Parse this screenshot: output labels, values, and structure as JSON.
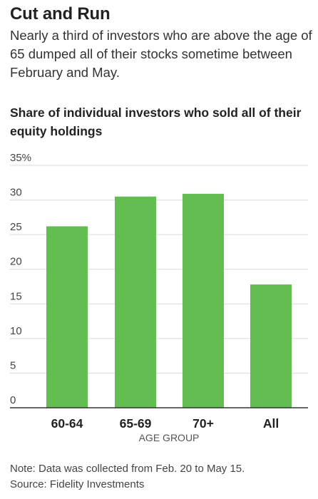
{
  "header": {
    "title": "Cut and Run",
    "subtitle": "Nearly a third of investors who are above the age of 65 dumped all of their stocks sometime between February and May."
  },
  "chart_data": {
    "type": "bar",
    "title": "Share of individual investors who sold all of their equity holdings",
    "xlabel": "AGE GROUP",
    "ylabel": "",
    "categories": [
      "60-64",
      "65-69",
      "70+",
      "All"
    ],
    "values": [
      26.2,
      30.5,
      30.9,
      17.8
    ],
    "ylim": [
      0,
      35
    ],
    "yticks": [
      0,
      5,
      10,
      15,
      20,
      25,
      30,
      35
    ],
    "ytick_labels": [
      "0",
      "5",
      "10",
      "15",
      "20",
      "25",
      "30",
      "35%"
    ],
    "grid": true,
    "bar_color": "#64bd51",
    "grid_color": "#d9d9d9",
    "axis_color": "#333333"
  },
  "footer": {
    "note": "Note: Data was collected from Feb. 20 to May 15.",
    "source": "Source: Fidelity Investments"
  }
}
